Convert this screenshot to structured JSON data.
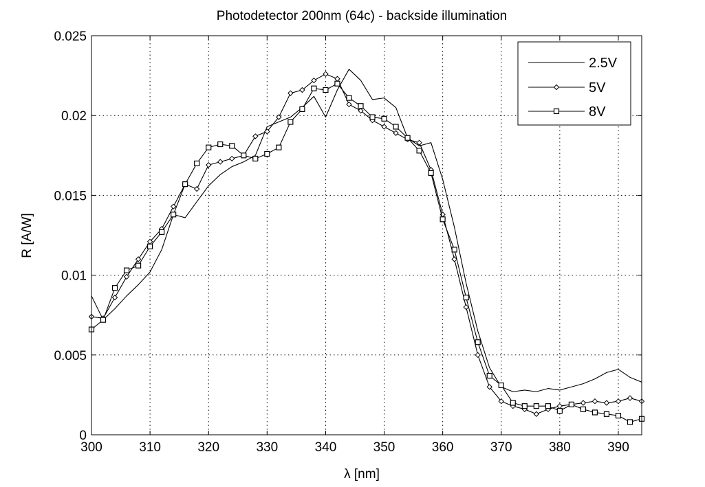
{
  "chart_data": {
    "type": "line",
    "title": "Photodetector 200nm (64c) - backside illumination",
    "xlabel": "λ [nm]",
    "ylabel": "R [A/W]",
    "xlim": [
      300,
      394
    ],
    "ylim": [
      0,
      0.025
    ],
    "grid": true,
    "legend_position": "top-right",
    "x_ticks": [
      300,
      310,
      320,
      330,
      340,
      350,
      360,
      370,
      380,
      390
    ],
    "x_tick_labels": [
      "300",
      "310",
      "320",
      "330",
      "340",
      "350",
      "360",
      "370",
      "380",
      "390"
    ],
    "y_ticks": [
      0,
      0.005,
      0.01,
      0.015,
      0.02,
      0.025
    ],
    "y_tick_labels": [
      "0",
      "0.005",
      "0.01",
      "0.015",
      "0.02",
      "0.025"
    ],
    "x": [
      300,
      302,
      304,
      306,
      308,
      310,
      312,
      314,
      316,
      318,
      320,
      322,
      324,
      326,
      328,
      330,
      332,
      334,
      336,
      338,
      340,
      342,
      344,
      346,
      348,
      350,
      352,
      354,
      356,
      358,
      360,
      362,
      364,
      366,
      368,
      370,
      372,
      374,
      376,
      378,
      380,
      382,
      384,
      386,
      388,
      390,
      392,
      394
    ],
    "series": [
      {
        "name": "2.5V",
        "marker": "none",
        "values": [
          0.0087,
          0.0072,
          0.0079,
          0.0087,
          0.0094,
          0.0102,
          0.0116,
          0.0138,
          0.0136,
          0.0146,
          0.0156,
          0.0163,
          0.0168,
          0.0171,
          0.0175,
          0.0193,
          0.0196,
          0.0199,
          0.0205,
          0.0212,
          0.0199,
          0.0216,
          0.0229,
          0.0222,
          0.021,
          0.0211,
          0.0205,
          0.0186,
          0.0181,
          0.0183,
          0.016,
          0.013,
          0.0095,
          0.0065,
          0.0042,
          0.003,
          0.0027,
          0.0028,
          0.0027,
          0.0029,
          0.0028,
          0.003,
          0.0032,
          0.0035,
          0.0039,
          0.0041,
          0.0036,
          0.0033
        ]
      },
      {
        "name": "5V",
        "marker": "diamond",
        "values": [
          0.0074,
          0.0073,
          0.0086,
          0.0099,
          0.011,
          0.0121,
          0.0129,
          0.0143,
          0.0157,
          0.0154,
          0.0169,
          0.0171,
          0.0173,
          0.0175,
          0.0187,
          0.019,
          0.0199,
          0.0214,
          0.0216,
          0.0222,
          0.0226,
          0.0223,
          0.0207,
          0.0203,
          0.0197,
          0.0193,
          0.0189,
          0.0185,
          0.0183,
          0.0166,
          0.0138,
          0.011,
          0.008,
          0.005,
          0.003,
          0.0021,
          0.0018,
          0.0016,
          0.0013,
          0.0016,
          0.0018,
          0.0019,
          0.002,
          0.0021,
          0.002,
          0.0021,
          0.0023,
          0.0021
        ]
      },
      {
        "name": "8V",
        "marker": "square",
        "values": [
          0.0066,
          0.0072,
          0.0092,
          0.0103,
          0.0106,
          0.0118,
          0.0127,
          0.0138,
          0.0157,
          0.017,
          0.018,
          0.0182,
          0.0181,
          0.0175,
          0.0173,
          0.0176,
          0.018,
          0.0196,
          0.0204,
          0.0217,
          0.0216,
          0.022,
          0.0211,
          0.0206,
          0.0199,
          0.0198,
          0.0193,
          0.0186,
          0.0178,
          0.0164,
          0.0135,
          0.0116,
          0.0086,
          0.0058,
          0.0037,
          0.0031,
          0.002,
          0.0018,
          0.0018,
          0.0018,
          0.0015,
          0.0019,
          0.0016,
          0.0014,
          0.0013,
          0.0012,
          0.0008,
          0.001
        ]
      }
    ]
  }
}
